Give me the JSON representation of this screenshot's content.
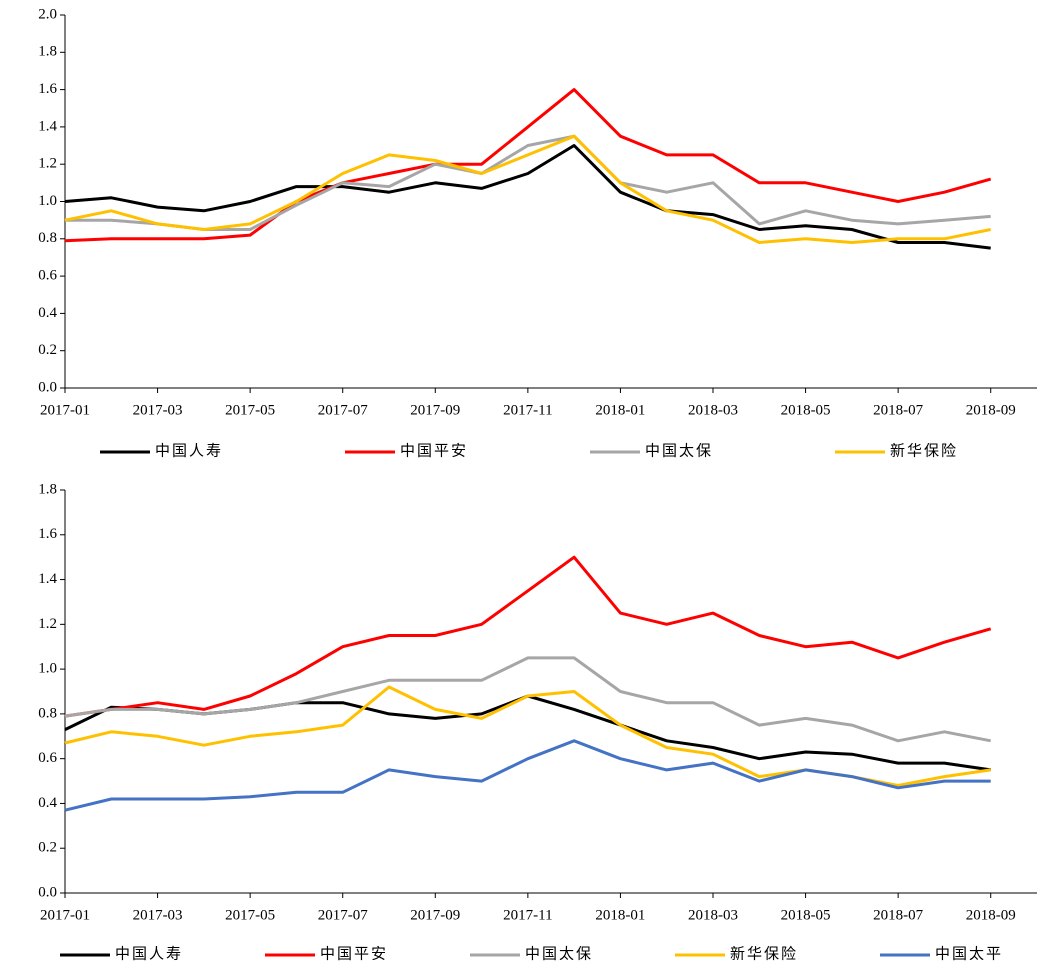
{
  "chart_data": [
    {
      "type": "line",
      "x": [
        "2017-01",
        "2017-02",
        "2017-03",
        "2017-04",
        "2017-05",
        "2017-06",
        "2017-07",
        "2017-08",
        "2017-09",
        "2017-10",
        "2017-11",
        "2017-12",
        "2018-01",
        "2018-02",
        "2018-03",
        "2018-04",
        "2018-05",
        "2018-06",
        "2018-07",
        "2018-08",
        "2018-09"
      ],
      "xlim": [
        "2017-01",
        "2018-10"
      ],
      "xticks": [
        "2017-01",
        "2017-03",
        "2017-05",
        "2017-07",
        "2017-09",
        "2017-11",
        "2018-01",
        "2018-03",
        "2018-05",
        "2018-07",
        "2018-09"
      ],
      "ylim": [
        0,
        2
      ],
      "yticks": [
        {
          "value": 0,
          "label": "0.0"
        },
        {
          "value": 0.2,
          "label": "0.2"
        },
        {
          "value": 0.4,
          "label": "0.4"
        },
        {
          "value": 0.6,
          "label": "0.6"
        },
        {
          "value": 0.8,
          "label": "0.8"
        },
        {
          "value": 1,
          "label": "1.0"
        },
        {
          "value": 1.2,
          "label": "1.2"
        },
        {
          "value": 1.4,
          "label": "1.4"
        },
        {
          "value": 1.6,
          "label": "1.6"
        },
        {
          "value": 1.8,
          "label": "1.8"
        },
        {
          "value": 2,
          "label": "2.0"
        }
      ],
      "series": [
        {
          "name": "中国人寿",
          "color": "#000000",
          "values": [
            1.0,
            1.02,
            0.97,
            0.95,
            1.0,
            1.08,
            1.08,
            1.05,
            1.1,
            1.07,
            1.15,
            1.3,
            1.05,
            0.95,
            0.93,
            0.85,
            0.87,
            0.85,
            0.78,
            0.78,
            0.75
          ]
        },
        {
          "name": "中国平安",
          "color": "#ff0000",
          "values": [
            0.79,
            0.8,
            0.8,
            0.8,
            0.82,
            1.0,
            1.1,
            1.15,
            1.2,
            1.2,
            1.4,
            1.6,
            1.35,
            1.25,
            1.25,
            1.1,
            1.1,
            1.05,
            1.0,
            1.05,
            1.12
          ]
        },
        {
          "name": "中国太保",
          "color": "#a6a6a6",
          "values": [
            0.9,
            0.9,
            0.88,
            0.85,
            0.85,
            0.98,
            1.1,
            1.08,
            1.2,
            1.15,
            1.3,
            1.35,
            1.1,
            1.05,
            1.1,
            0.88,
            0.95,
            0.9,
            0.88,
            0.9,
            0.92
          ]
        },
        {
          "name": "新华保险",
          "color": "#ffc000",
          "values": [
            0.9,
            0.95,
            0.88,
            0.85,
            0.88,
            1.0,
            1.15,
            1.25,
            1.22,
            1.15,
            1.25,
            1.35,
            1.1,
            0.95,
            0.9,
            0.78,
            0.8,
            0.78,
            0.8,
            0.8,
            0.85
          ]
        }
      ]
    },
    {
      "type": "line",
      "x": [
        "2017-01",
        "2017-02",
        "2017-03",
        "2017-04",
        "2017-05",
        "2017-06",
        "2017-07",
        "2017-08",
        "2017-09",
        "2017-10",
        "2017-11",
        "2017-12",
        "2018-01",
        "2018-02",
        "2018-03",
        "2018-04",
        "2018-05",
        "2018-06",
        "2018-07",
        "2018-08",
        "2018-09"
      ],
      "xlim": [
        "2017-01",
        "2018-10"
      ],
      "xticks": [
        "2017-01",
        "2017-03",
        "2017-05",
        "2017-07",
        "2017-09",
        "2017-11",
        "2018-01",
        "2018-03",
        "2018-05",
        "2018-07",
        "2018-09"
      ],
      "ylim": [
        0,
        1.8
      ],
      "yticks": [
        {
          "value": 0,
          "label": "0.0"
        },
        {
          "value": 0.2,
          "label": "0.2"
        },
        {
          "value": 0.4,
          "label": "0.4"
        },
        {
          "value": 0.6,
          "label": "0.6"
        },
        {
          "value": 0.8,
          "label": "0.8"
        },
        {
          "value": 1,
          "label": "1.0"
        },
        {
          "value": 1.2,
          "label": "1.2"
        },
        {
          "value": 1.4,
          "label": "1.4"
        },
        {
          "value": 1.6,
          "label": "1.6"
        },
        {
          "value": 1.8,
          "label": "1.8"
        }
      ],
      "series": [
        {
          "name": "中国人寿",
          "color": "#000000",
          "values": [
            0.73,
            0.83,
            0.82,
            0.8,
            0.82,
            0.85,
            0.85,
            0.8,
            0.78,
            0.8,
            0.88,
            0.82,
            0.75,
            0.68,
            0.65,
            0.6,
            0.63,
            0.62,
            0.58,
            0.58,
            0.55
          ]
        },
        {
          "name": "中国平安",
          "color": "#ff0000",
          "values": [
            0.79,
            0.82,
            0.85,
            0.82,
            0.88,
            0.98,
            1.1,
            1.15,
            1.15,
            1.2,
            1.35,
            1.5,
            1.25,
            1.2,
            1.25,
            1.15,
            1.1,
            1.12,
            1.05,
            1.12,
            1.18
          ]
        },
        {
          "name": "中国太保",
          "color": "#a6a6a6",
          "values": [
            0.79,
            0.82,
            0.82,
            0.8,
            0.82,
            0.85,
            0.9,
            0.95,
            0.95,
            0.95,
            1.05,
            1.05,
            0.9,
            0.85,
            0.85,
            0.75,
            0.78,
            0.75,
            0.68,
            0.72,
            0.68
          ]
        },
        {
          "name": "新华保险",
          "color": "#ffc000",
          "values": [
            0.67,
            0.72,
            0.7,
            0.66,
            0.7,
            0.72,
            0.75,
            0.92,
            0.82,
            0.78,
            0.88,
            0.9,
            0.75,
            0.65,
            0.62,
            0.52,
            0.55,
            0.52,
            0.48,
            0.52,
            0.55
          ]
        },
        {
          "name": "中国太平",
          "color": "#4472c4",
          "values": [
            0.37,
            0.42,
            0.42,
            0.42,
            0.43,
            0.45,
            0.45,
            0.55,
            0.52,
            0.5,
            0.6,
            0.68,
            0.6,
            0.55,
            0.58,
            0.5,
            0.55,
            0.52,
            0.47,
            0.5,
            0.5
          ]
        }
      ]
    }
  ]
}
